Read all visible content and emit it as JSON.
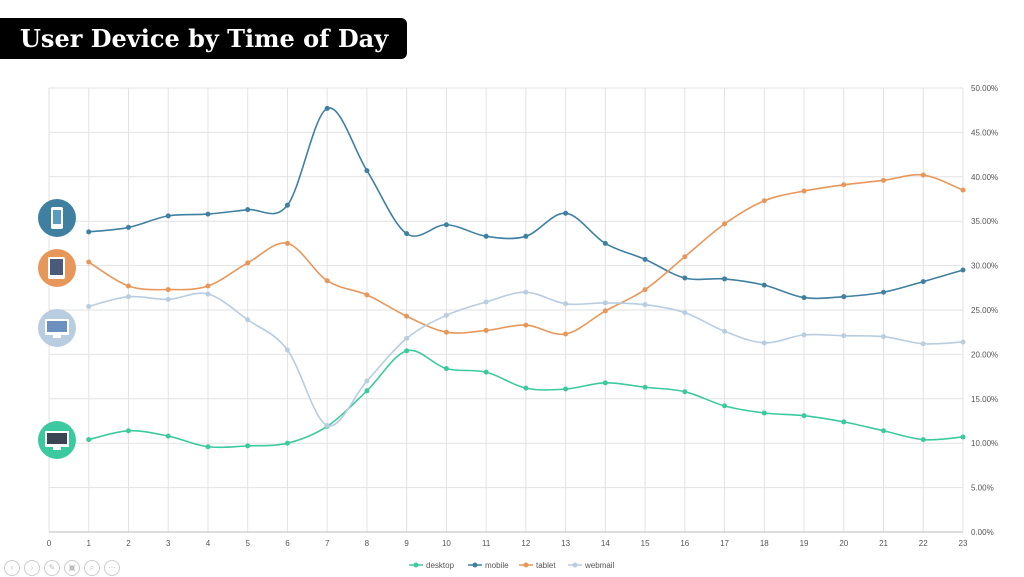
{
  "title": "User Device by Time of Day",
  "chart_data": {
    "type": "line",
    "title": "User Device by Time of Day",
    "x": [
      1,
      2,
      3,
      4,
      5,
      6,
      7,
      8,
      9,
      10,
      11,
      12,
      13,
      14,
      15,
      16,
      17,
      18,
      19,
      20,
      21,
      22,
      23
    ],
    "xlim": [
      0,
      23
    ],
    "xticks": [
      "0",
      "1",
      "2",
      "3",
      "4",
      "5",
      "6",
      "7",
      "8",
      "9",
      "10",
      "11",
      "12",
      "13",
      "14",
      "15",
      "16",
      "17",
      "18",
      "19",
      "20",
      "21",
      "22",
      "23"
    ],
    "ylim": [
      0,
      50
    ],
    "yticks": [
      "0.00%",
      "5.00%",
      "10.00%",
      "15.00%",
      "20.00%",
      "25.00%",
      "30.00%",
      "35.00%",
      "40.00%",
      "45.00%",
      "50.00%"
    ],
    "y_axis_side": "right",
    "grid": true,
    "legend_position": "bottom",
    "series": [
      {
        "name": "desktop",
        "color": "#3dc9a0",
        "icon": "desktop-monitor-icon",
        "values": [
          10.4,
          11.4,
          10.8,
          9.6,
          9.7,
          10.0,
          11.9,
          15.9,
          20.4,
          18.4,
          18.0,
          16.2,
          16.1,
          16.8,
          16.3,
          15.8,
          14.2,
          13.4,
          13.1,
          12.4,
          11.4,
          10.4,
          10.7
        ]
      },
      {
        "name": "mobile",
        "color": "#3f7fa0",
        "icon": "smartphone-icon",
        "values": [
          33.8,
          34.3,
          35.6,
          35.8,
          36.3,
          36.8,
          47.7,
          40.7,
          33.6,
          34.6,
          33.3,
          33.3,
          35.9,
          32.5,
          30.7,
          28.6,
          28.5,
          27.8,
          26.4,
          26.5,
          27.0,
          28.2,
          29.5
        ]
      },
      {
        "name": "tablet",
        "color": "#e8975a",
        "icon": "tablet-icon",
        "values": [
          30.4,
          27.7,
          27.3,
          27.7,
          30.3,
          32.5,
          28.3,
          26.7,
          24.3,
          22.5,
          22.7,
          23.3,
          22.3,
          24.9,
          27.3,
          31.0,
          34.7,
          37.3,
          38.4,
          39.1,
          39.6,
          40.2,
          38.5
        ]
      },
      {
        "name": "webmail",
        "color": "#b8cde0",
        "icon": "webmail-monitor-icon",
        "values": [
          25.4,
          26.5,
          26.2,
          26.8,
          23.9,
          20.5,
          12.0,
          17.0,
          21.8,
          24.4,
          25.9,
          27.0,
          25.7,
          25.8,
          25.6,
          24.7,
          22.6,
          21.3,
          22.2,
          22.1,
          22.0,
          21.2,
          21.4
        ]
      }
    ]
  },
  "nav": {
    "icons": [
      "back-icon",
      "forward-icon",
      "pen-icon",
      "slides-icon",
      "zoom-icon",
      "more-icon"
    ]
  }
}
